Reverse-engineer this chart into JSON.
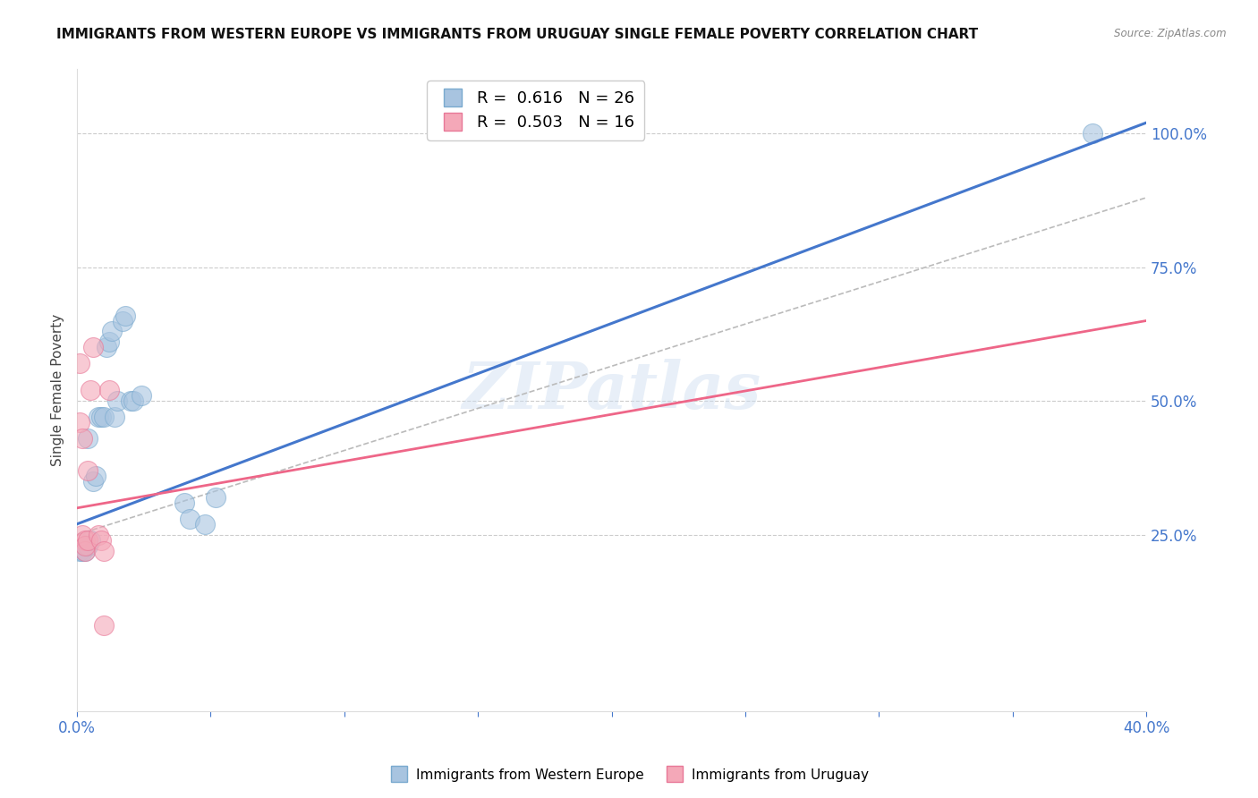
{
  "title": "IMMIGRANTS FROM WESTERN EUROPE VS IMMIGRANTS FROM URUGUAY SINGLE FEMALE POVERTY CORRELATION CHART",
  "source": "Source: ZipAtlas.com",
  "ylabel": "Single Female Poverty",
  "right_yticks": [
    0.0,
    0.25,
    0.5,
    0.75,
    1.0
  ],
  "right_yticklabels": [
    "",
    "25.0%",
    "50.0%",
    "75.0%",
    "100.0%"
  ],
  "R_blue": 0.616,
  "N_blue": 26,
  "R_pink": 0.503,
  "N_pink": 16,
  "blue_color": "#a8c4e0",
  "pink_color": "#f4a8b8",
  "blue_scatter_edge": "#7aaacf",
  "pink_scatter_edge": "#e87898",
  "blue_line_color": "#4477cc",
  "pink_line_color": "#ee6688",
  "gray_line_color": "#bbbbbb",
  "watermark": "ZIPatlas",
  "legend_label_blue": "Immigrants from Western Europe",
  "legend_label_pink": "Immigrants from Uruguay",
  "blue_points_x": [
    0.001,
    0.002,
    0.003,
    0.004,
    0.004,
    0.005,
    0.006,
    0.007,
    0.008,
    0.009,
    0.01,
    0.011,
    0.012,
    0.013,
    0.014,
    0.015,
    0.017,
    0.018,
    0.02,
    0.021,
    0.024,
    0.04,
    0.042,
    0.048,
    0.052,
    0.38
  ],
  "blue_points_y": [
    0.22,
    0.22,
    0.22,
    0.23,
    0.43,
    0.24,
    0.35,
    0.36,
    0.47,
    0.47,
    0.47,
    0.6,
    0.61,
    0.63,
    0.47,
    0.5,
    0.65,
    0.66,
    0.5,
    0.5,
    0.51,
    0.31,
    0.28,
    0.27,
    0.32,
    1.0
  ],
  "pink_points_x": [
    0.001,
    0.001,
    0.002,
    0.002,
    0.003,
    0.003,
    0.003,
    0.004,
    0.004,
    0.005,
    0.006,
    0.008,
    0.009,
    0.01,
    0.01,
    0.012
  ],
  "pink_points_y": [
    0.57,
    0.46,
    0.43,
    0.25,
    0.24,
    0.22,
    0.23,
    0.37,
    0.24,
    0.52,
    0.6,
    0.25,
    0.24,
    0.22,
    0.08,
    0.52
  ],
  "xlim": [
    0.0,
    0.4
  ],
  "ylim": [
    -0.08,
    1.12
  ],
  "blue_line_x": [
    0.0,
    0.4
  ],
  "blue_line_y": [
    0.27,
    1.02
  ],
  "pink_line_x": [
    0.0,
    0.4
  ],
  "pink_line_y": [
    0.3,
    0.65
  ],
  "gray_line_x": [
    0.0,
    0.4
  ],
  "gray_line_y": [
    0.25,
    0.88
  ]
}
